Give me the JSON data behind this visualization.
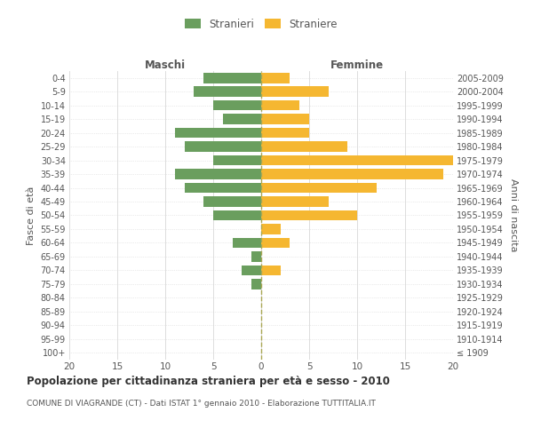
{
  "age_groups": [
    "100+",
    "95-99",
    "90-94",
    "85-89",
    "80-84",
    "75-79",
    "70-74",
    "65-69",
    "60-64",
    "55-59",
    "50-54",
    "45-49",
    "40-44",
    "35-39",
    "30-34",
    "25-29",
    "20-24",
    "15-19",
    "10-14",
    "5-9",
    "0-4"
  ],
  "birth_years": [
    "≤ 1909",
    "1910-1914",
    "1915-1919",
    "1920-1924",
    "1925-1929",
    "1930-1934",
    "1935-1939",
    "1940-1944",
    "1945-1949",
    "1950-1954",
    "1955-1959",
    "1960-1964",
    "1965-1969",
    "1970-1974",
    "1975-1979",
    "1980-1984",
    "1985-1989",
    "1990-1994",
    "1995-1999",
    "2000-2004",
    "2005-2009"
  ],
  "maschi": [
    0,
    0,
    0,
    0,
    0,
    1,
    2,
    1,
    3,
    0,
    5,
    6,
    8,
    9,
    5,
    8,
    9,
    4,
    5,
    7,
    6
  ],
  "femmine": [
    0,
    0,
    0,
    0,
    0,
    0,
    2,
    0,
    3,
    2,
    10,
    7,
    12,
    19,
    20,
    9,
    5,
    5,
    4,
    7,
    3
  ],
  "color_maschi": "#6a9e5e",
  "color_femmine": "#f5b731",
  "xlim": [
    -20,
    20
  ],
  "title_main": "Popolazione per cittadinanza straniera per età e sesso - 2010",
  "subtitle": "COMUNE DI VIAGRANDE (CT) - Dati ISTAT 1° gennaio 2010 - Elaborazione TUTTITALIA.IT",
  "ylabel_left": "Fasce di età",
  "ylabel_right": "Anni di nascita",
  "label_maschi_header": "Maschi",
  "label_femmine_header": "Femmine",
  "legend_stranieri": "Stranieri",
  "legend_straniere": "Straniere",
  "bg_color": "#ffffff",
  "grid_color": "#d8d8d8",
  "text_color": "#555555",
  "bar_height": 0.75,
  "xticks": [
    -20,
    -15,
    -10,
    -5,
    0,
    5,
    10,
    15,
    20
  ]
}
